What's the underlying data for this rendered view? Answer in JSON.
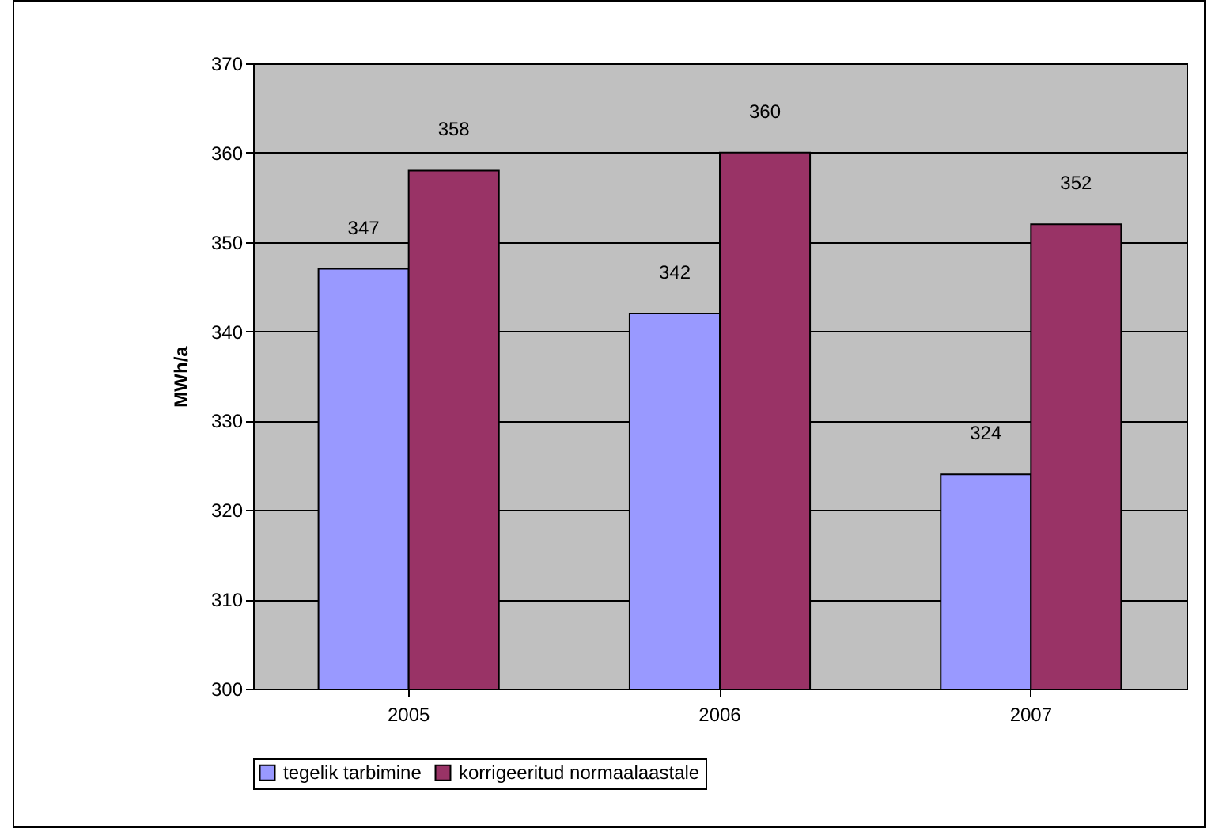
{
  "chart_data": {
    "type": "bar",
    "ylabel": "MWh/a",
    "categories": [
      "2005",
      "2006",
      "2007"
    ],
    "series": [
      {
        "name": "tegelik tarbimine",
        "color": "#9999ff",
        "values": [
          347,
          342,
          324
        ]
      },
      {
        "name": "korrigeeritud normaalaastale",
        "color": "#993366",
        "values": [
          358,
          360,
          352
        ]
      }
    ],
    "ylim": [
      300,
      370
    ],
    "yticks": [
      300,
      310,
      320,
      330,
      340,
      350,
      360,
      370
    ],
    "grid": "y",
    "legend": "bottom",
    "data_labels": true
  }
}
